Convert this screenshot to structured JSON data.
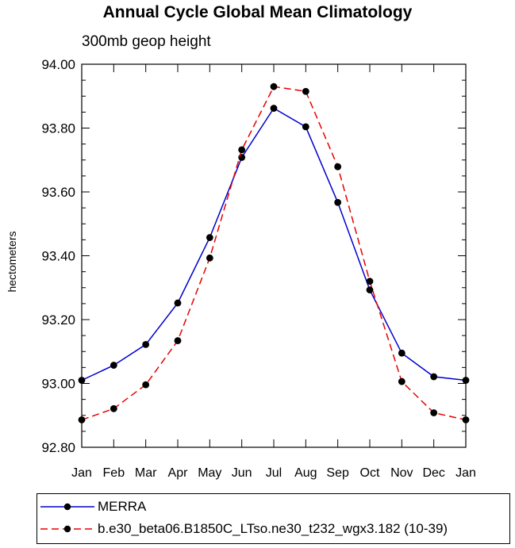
{
  "chart_data": {
    "type": "line",
    "title": "Annual Cycle Global Mean Climatology",
    "subtitle": "300mb geop height",
    "xlabel": "",
    "ylabel": "hectometers",
    "categories": [
      "Jan",
      "Feb",
      "Mar",
      "Apr",
      "May",
      "Jun",
      "Jul",
      "Aug",
      "Sep",
      "Oct",
      "Nov",
      "Dec",
      "Jan"
    ],
    "ylim": [
      92.8,
      94.0
    ],
    "yticks": [
      92.8,
      93.0,
      93.2,
      93.4,
      93.6,
      93.8,
      94.0
    ],
    "ytick_labels": [
      "92.80",
      "93.00",
      "93.20",
      "93.40",
      "93.60",
      "93.80",
      "94.00"
    ],
    "grid": false,
    "legend_position": "bottom",
    "series": [
      {
        "name": "MERRA",
        "color": "#0000cc",
        "line_style": "solid",
        "marker": "filled-circle",
        "values": [
          93.01,
          93.057,
          93.122,
          93.252,
          93.457,
          93.708,
          93.862,
          93.804,
          93.567,
          93.293,
          93.095,
          93.021,
          93.01
        ]
      },
      {
        "name": "b.e30_beta06.B1850C_LTso.ne30_t232_wgx3.182 (10-39)",
        "color": "#e60000",
        "line_style": "dashed",
        "marker": "filled-circle",
        "values": [
          92.886,
          92.921,
          92.996,
          93.134,
          93.393,
          93.732,
          93.93,
          93.915,
          93.679,
          93.32,
          93.006,
          92.908,
          92.886
        ]
      }
    ]
  }
}
